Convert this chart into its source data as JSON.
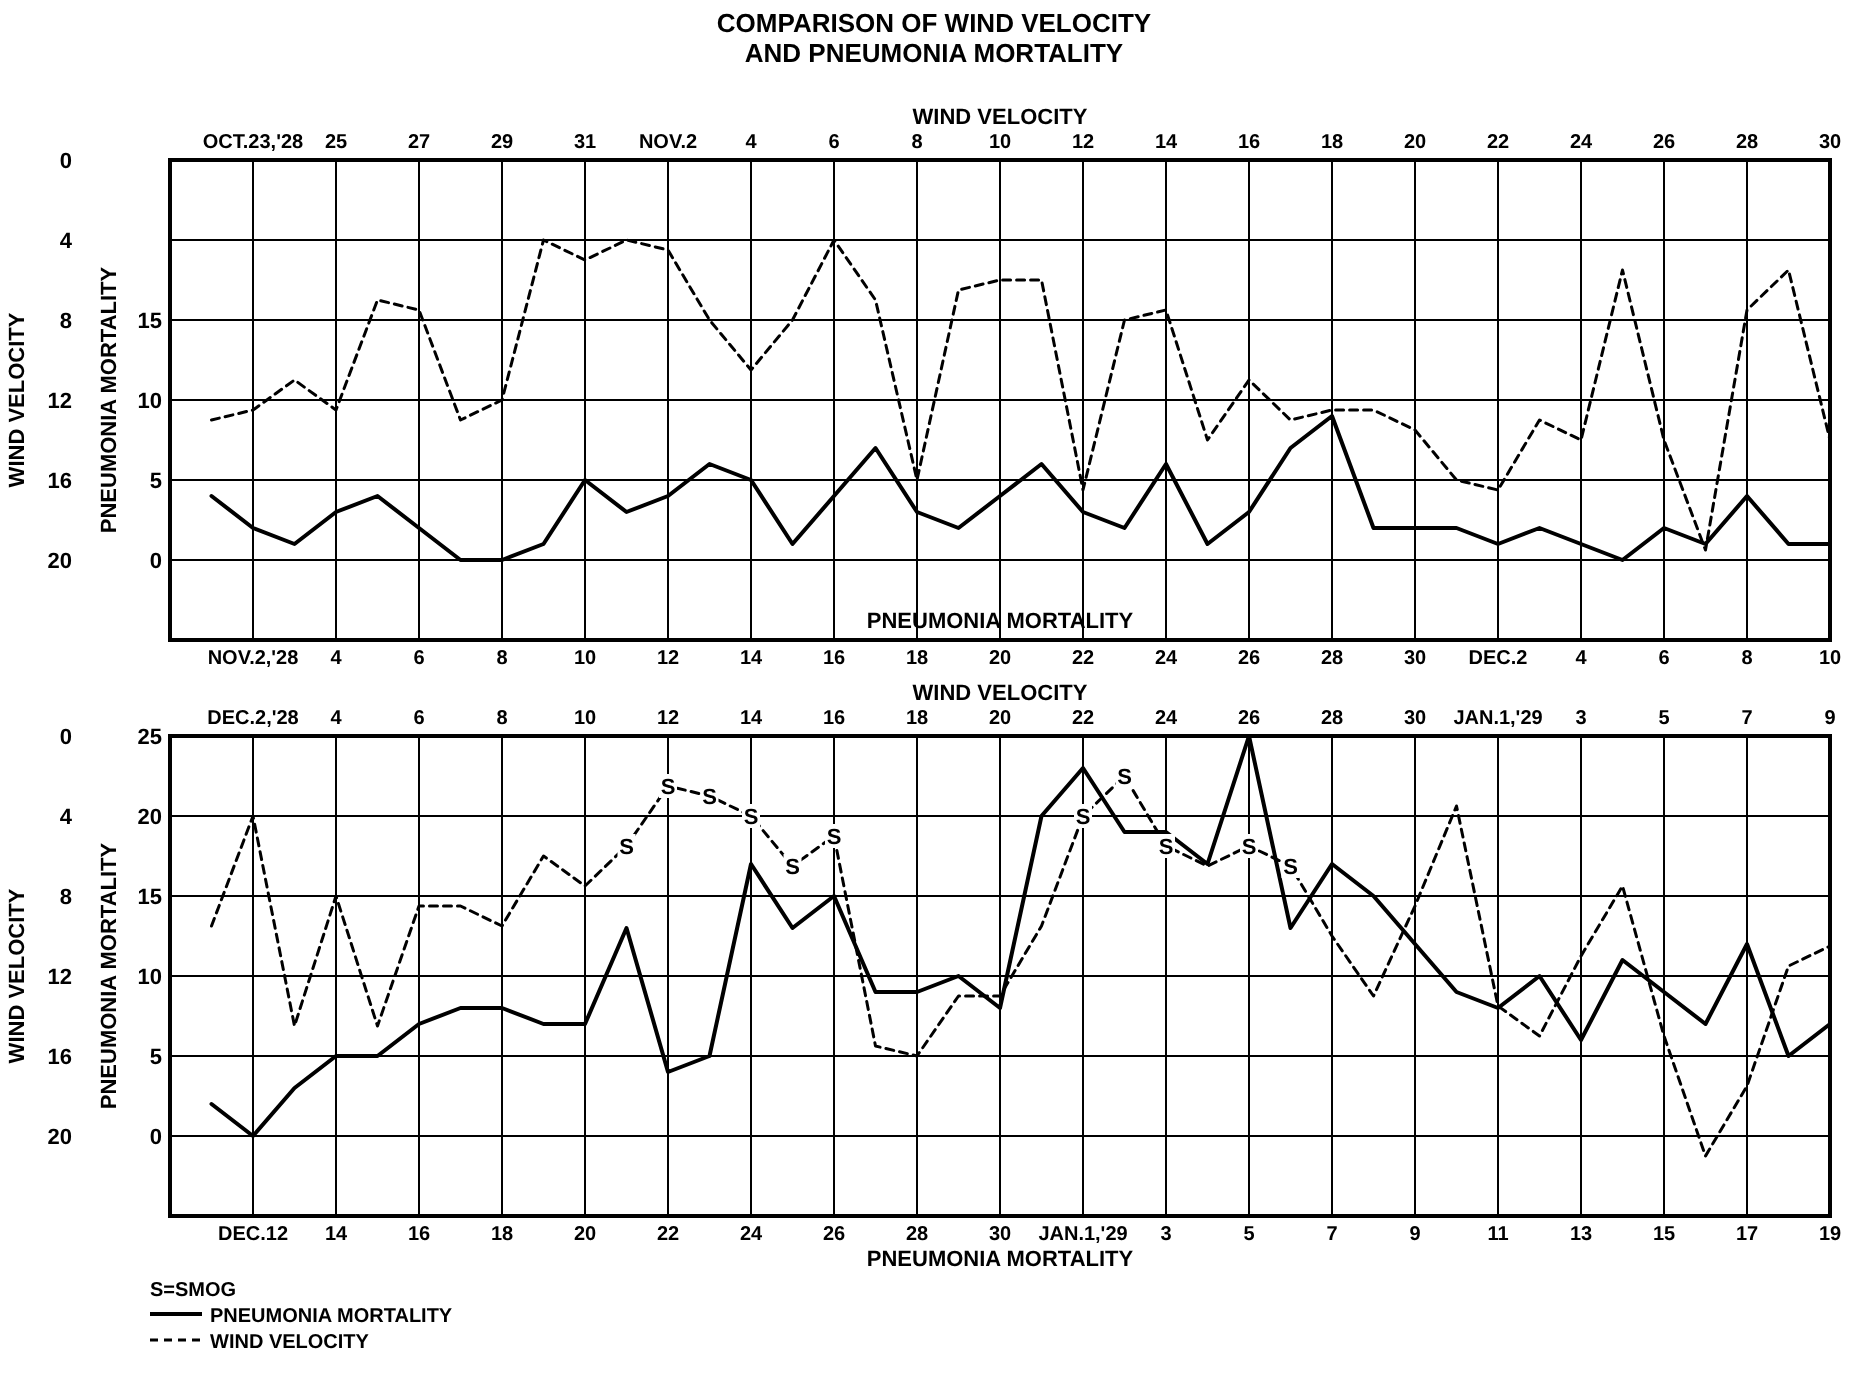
{
  "chart_data": [
    {
      "type": "line",
      "title": "COMPARISON OF WIND VELOCITY AND PNEUMONIA MORTALITY",
      "xlabel": "WIND VELOCITY",
      "ylabel": "WIND VELOCITY",
      "grid": true,
      "xlim": [
        "1928-10-21",
        "1928-11-30"
      ],
      "ylim": [
        24,
        0
      ],
      "yticks": [
        0,
        4,
        8,
        12,
        16,
        20
      ],
      "xticks": [
        {
          "value": "1928-10-23",
          "label": "OCT.23,'28"
        },
        {
          "value": "1928-10-25",
          "label": "25"
        },
        {
          "value": "1928-10-27",
          "label": "27"
        },
        {
          "value": "1928-10-29",
          "label": "29"
        },
        {
          "value": "1928-10-31",
          "label": "31"
        },
        {
          "value": "1928-11-02",
          "label": "NOV.2"
        },
        {
          "value": "1928-11-04",
          "label": "4"
        },
        {
          "value": "1928-11-06",
          "label": "6"
        },
        {
          "value": "1928-11-08",
          "label": "8"
        },
        {
          "value": "1928-11-10",
          "label": "10"
        },
        {
          "value": "1928-11-12",
          "label": "12"
        },
        {
          "value": "1928-11-14",
          "label": "14"
        },
        {
          "value": "1928-11-16",
          "label": "16"
        },
        {
          "value": "1928-11-18",
          "label": "18"
        },
        {
          "value": "1928-11-20",
          "label": "20"
        },
        {
          "value": "1928-11-22",
          "label": "22"
        },
        {
          "value": "1928-11-24",
          "label": "24"
        },
        {
          "value": "1928-11-26",
          "label": "26"
        },
        {
          "value": "1928-11-28",
          "label": "28"
        },
        {
          "value": "1928-11-30",
          "label": "30"
        }
      ],
      "series": [
        {
          "type": "line",
          "color": "#000000",
          "line_style": "dashed",
          "x": [
            "1928-10-22",
            "1928-10-23",
            "1928-10-24",
            "1928-10-25",
            "1928-10-26",
            "1928-10-27",
            "1928-10-28",
            "1928-10-29",
            "1928-10-30",
            "1928-10-31",
            "1928-11-01",
            "1928-11-02",
            "1928-11-03",
            "1928-11-04",
            "1928-11-05",
            "1928-11-06",
            "1928-11-07",
            "1928-11-08",
            "1928-11-09",
            "1928-11-10",
            "1928-11-11",
            "1928-11-12",
            "1928-11-13",
            "1928-11-14",
            "1928-11-15",
            "1928-11-16",
            "1928-11-17",
            "1928-11-18",
            "1928-11-19",
            "1928-11-20",
            "1928-11-21",
            "1928-11-22",
            "1928-11-23",
            "1928-11-24",
            "1928-11-25",
            "1928-11-26",
            "1928-11-27",
            "1928-11-28",
            "1928-11-29",
            "1928-11-30"
          ],
          "values": [
            13,
            12.5,
            11,
            12.5,
            7,
            7.5,
            13,
            12,
            4,
            5,
            4,
            4.5,
            8,
            10.5,
            8,
            4,
            7,
            16,
            6.5,
            6,
            6,
            16.5,
            8,
            7.5,
            14,
            11,
            13,
            12.5,
            12.5,
            13.5,
            16,
            16.5,
            13,
            14,
            5.5,
            14,
            19.5,
            7.5,
            5.5,
            14
          ]
        }
      ]
    },
    {
      "type": "line",
      "xlabel": "PNEUMONIA MORTALITY",
      "ylabel": "PNEUMONIA MORTALITY",
      "grid": true,
      "xlim": [
        "1928-10-31",
        "1928-12-10"
      ],
      "ylim": [
        -5,
        25
      ],
      "yticks": [
        15,
        10,
        5,
        0
      ],
      "xticks": [
        {
          "value": "1928-11-02",
          "label": "NOV.2,'28"
        },
        {
          "value": "1928-11-04",
          "label": "4"
        },
        {
          "value": "1928-11-06",
          "label": "6"
        },
        {
          "value": "1928-11-08",
          "label": "8"
        },
        {
          "value": "1928-11-10",
          "label": "10"
        },
        {
          "value": "1928-11-12",
          "label": "12"
        },
        {
          "value": "1928-11-14",
          "label": "14"
        },
        {
          "value": "1928-11-16",
          "label": "16"
        },
        {
          "value": "1928-11-18",
          "label": "18"
        },
        {
          "value": "1928-11-20",
          "label": "20"
        },
        {
          "value": "1928-11-22",
          "label": "22"
        },
        {
          "value": "1928-11-24",
          "label": "24"
        },
        {
          "value": "1928-11-26",
          "label": "26"
        },
        {
          "value": "1928-11-28",
          "label": "28"
        },
        {
          "value": "1928-11-30",
          "label": "30"
        },
        {
          "value": "1928-12-02",
          "label": "DEC.2"
        },
        {
          "value": "1928-12-04",
          "label": "4"
        },
        {
          "value": "1928-12-06",
          "label": "6"
        },
        {
          "value": "1928-12-08",
          "label": "8"
        },
        {
          "value": "1928-12-10",
          "label": "10"
        }
      ],
      "series": [
        {
          "type": "line",
          "color": "#000000",
          "line_style": "solid",
          "x": [
            "1928-11-01",
            "1928-11-02",
            "1928-11-03",
            "1928-11-04",
            "1928-11-05",
            "1928-11-06",
            "1928-11-07",
            "1928-11-08",
            "1928-11-09",
            "1928-11-10",
            "1928-11-11",
            "1928-11-12",
            "1928-11-13",
            "1928-11-14",
            "1928-11-15",
            "1928-11-16",
            "1928-11-17",
            "1928-11-18",
            "1928-11-19",
            "1928-11-20",
            "1928-11-21",
            "1928-11-22",
            "1928-11-23",
            "1928-11-24",
            "1928-11-25",
            "1928-11-26",
            "1928-11-27",
            "1928-11-28",
            "1928-11-29",
            "1928-11-30",
            "1928-12-01",
            "1928-12-02",
            "1928-12-03",
            "1928-12-04",
            "1928-12-05",
            "1928-12-06",
            "1928-12-07",
            "1928-12-08",
            "1928-12-09",
            "1928-12-10"
          ],
          "values": [
            4,
            2,
            1,
            3,
            4,
            2,
            0,
            0,
            1,
            5,
            3,
            4,
            6,
            5,
            1,
            4,
            7,
            3,
            2,
            4,
            6,
            3,
            2,
            6,
            1,
            3,
            7,
            9,
            2,
            2,
            2,
            1,
            2,
            1,
            0,
            2,
            1,
            4,
            1,
            1
          ]
        }
      ]
    },
    {
      "type": "line",
      "xlabel": "WIND VELOCITY",
      "ylabel": "WIND VELOCITY",
      "grid": true,
      "legend": "bottom left",
      "xlim": [
        "1928-11-30",
        "1929-01-09"
      ],
      "ylim": [
        24,
        0
      ],
      "yticks": [
        0,
        4,
        8,
        12,
        16,
        20
      ],
      "xticks": [
        {
          "value": "1928-12-02",
          "label": "DEC.2,'28"
        },
        {
          "value": "1928-12-04",
          "label": "4"
        },
        {
          "value": "1928-12-06",
          "label": "6"
        },
        {
          "value": "1928-12-08",
          "label": "8"
        },
        {
          "value": "1928-12-10",
          "label": "10"
        },
        {
          "value": "1928-12-12",
          "label": "12"
        },
        {
          "value": "1928-12-14",
          "label": "14"
        },
        {
          "value": "1928-12-16",
          "label": "16"
        },
        {
          "value": "1928-12-18",
          "label": "18"
        },
        {
          "value": "1928-12-20",
          "label": "20"
        },
        {
          "value": "1928-12-22",
          "label": "22"
        },
        {
          "value": "1928-12-24",
          "label": "24"
        },
        {
          "value": "1928-12-26",
          "label": "26"
        },
        {
          "value": "1928-12-28",
          "label": "28"
        },
        {
          "value": "1928-12-30",
          "label": "30"
        },
        {
          "value": "1929-01-01",
          "label": "JAN.1,'29"
        },
        {
          "value": "1929-01-03",
          "label": "3"
        },
        {
          "value": "1929-01-05",
          "label": "5"
        },
        {
          "value": "1929-01-07",
          "label": "7"
        },
        {
          "value": "1929-01-09",
          "label": "9"
        }
      ],
      "annotations": [
        "S=SMOG",
        {
          "text": "S",
          "x": "1928-12-11",
          "y": 5.5
        },
        {
          "text": "S",
          "x": "1928-12-12",
          "y": 2.5
        },
        {
          "text": "S",
          "x": "1928-12-13",
          "y": 3
        },
        {
          "text": "S",
          "x": "1928-12-14",
          "y": 4
        },
        {
          "text": "S",
          "x": "1928-12-15",
          "y": 6.5
        },
        {
          "text": "S",
          "x": "1928-12-16",
          "y": 5
        },
        {
          "text": "S",
          "x": "1928-12-22",
          "y": 4
        },
        {
          "text": "S",
          "x": "1928-12-23",
          "y": 2
        },
        {
          "text": "S",
          "x": "1928-12-24",
          "y": 5.5
        },
        {
          "text": "S",
          "x": "1928-12-26",
          "y": 5.5
        },
        {
          "text": "S",
          "x": "1928-12-27",
          "y": 6.5
        }
      ],
      "series": [
        {
          "type": "line",
          "name": "WIND VELOCITY",
          "color": "#000000",
          "line_style": "dashed",
          "x": [
            "1928-12-01",
            "1928-12-02",
            "1928-12-03",
            "1928-12-04",
            "1928-12-05",
            "1928-12-06",
            "1928-12-07",
            "1928-12-08",
            "1928-12-09",
            "1928-12-10",
            "1928-12-11",
            "1928-12-12",
            "1928-12-13",
            "1928-12-14",
            "1928-12-15",
            "1928-12-16",
            "1928-12-17",
            "1928-12-18",
            "1928-12-19",
            "1928-12-20",
            "1928-12-21",
            "1928-12-22",
            "1928-12-23",
            "1928-12-24",
            "1928-12-25",
            "1928-12-26",
            "1928-12-27",
            "1928-12-28",
            "1928-12-29",
            "1928-12-30",
            "1928-12-31",
            "1929-01-01",
            "1929-01-02",
            "1929-01-03",
            "1929-01-04",
            "1929-01-05",
            "1929-01-06",
            "1929-01-07",
            "1929-01-08",
            "1929-01-09"
          ],
          "values": [
            9.5,
            4,
            14.5,
            8,
            14.5,
            8.5,
            8.5,
            9.5,
            6,
            7.5,
            5.5,
            2.5,
            3,
            4,
            6.5,
            5,
            15.5,
            16,
            13,
            13,
            9.5,
            4,
            2,
            5.5,
            6.5,
            5.5,
            6.5,
            10,
            13,
            8.5,
            3.5,
            13.5,
            15,
            11,
            7.5,
            15,
            21,
            17.5,
            11.5,
            10.5
          ]
        }
      ]
    },
    {
      "type": "line",
      "xlabel": "PNEUMONIA MORTALITY",
      "ylabel": "PNEUMONIA MORTALITY",
      "grid": true,
      "legend": "bottom left",
      "xlim": [
        "1928-12-10",
        "1929-01-19"
      ],
      "ylim": [
        -5,
        25
      ],
      "yticks": [
        25,
        20,
        15,
        10,
        5,
        0
      ],
      "xticks": [
        {
          "value": "1928-12-12",
          "label": "DEC.12"
        },
        {
          "value": "1928-12-14",
          "label": "14"
        },
        {
          "value": "1928-12-16",
          "label": "16"
        },
        {
          "value": "1928-12-18",
          "label": "18"
        },
        {
          "value": "1928-12-20",
          "label": "20"
        },
        {
          "value": "1928-12-22",
          "label": "22"
        },
        {
          "value": "1928-12-24",
          "label": "24"
        },
        {
          "value": "1928-12-26",
          "label": "26"
        },
        {
          "value": "1928-12-28",
          "label": "28"
        },
        {
          "value": "1928-12-30",
          "label": "30"
        },
        {
          "value": "1929-01-01",
          "label": "JAN.1,'29"
        },
        {
          "value": "1929-01-03",
          "label": "3"
        },
        {
          "value": "1929-01-05",
          "label": "5"
        },
        {
          "value": "1929-01-07",
          "label": "7"
        },
        {
          "value": "1929-01-09",
          "label": "9"
        },
        {
          "value": "1929-01-11",
          "label": "11"
        },
        {
          "value": "1929-01-13",
          "label": "13"
        },
        {
          "value": "1929-01-15",
          "label": "15"
        },
        {
          "value": "1929-01-17",
          "label": "17"
        },
        {
          "value": "1929-01-19",
          "label": "19"
        }
      ],
      "series": [
        {
          "type": "line",
          "name": "PNEUMONIA MORTALITY",
          "color": "#000000",
          "line_style": "solid",
          "x": [
            "1928-12-11",
            "1928-12-12",
            "1928-12-13",
            "1928-12-14",
            "1928-12-15",
            "1928-12-16",
            "1928-12-17",
            "1928-12-18",
            "1928-12-19",
            "1928-12-20",
            "1928-12-21",
            "1928-12-22",
            "1928-12-23",
            "1928-12-24",
            "1928-12-25",
            "1928-12-26",
            "1928-12-27",
            "1928-12-28",
            "1928-12-29",
            "1928-12-30",
            "1928-12-31",
            "1929-01-01",
            "1929-01-02",
            "1929-01-03",
            "1929-01-04",
            "1929-01-05",
            "1929-01-06",
            "1929-01-07",
            "1929-01-08",
            "1929-01-09",
            "1929-01-10",
            "1929-01-11",
            "1929-01-12",
            "1929-01-13",
            "1929-01-14",
            "1929-01-15",
            "1929-01-16",
            "1929-01-17",
            "1929-01-18",
            "1929-01-19"
          ],
          "values": [
            2,
            0,
            3,
            5,
            5,
            7,
            8,
            8,
            7,
            7,
            13,
            4,
            5,
            17,
            13,
            15,
            9,
            9,
            10,
            8,
            20,
            23,
            19,
            19,
            17,
            25,
            13,
            17,
            15,
            12,
            9,
            8,
            10,
            6,
            11,
            9,
            7,
            12,
            5,
            7
          ]
        }
      ]
    }
  ]
}
